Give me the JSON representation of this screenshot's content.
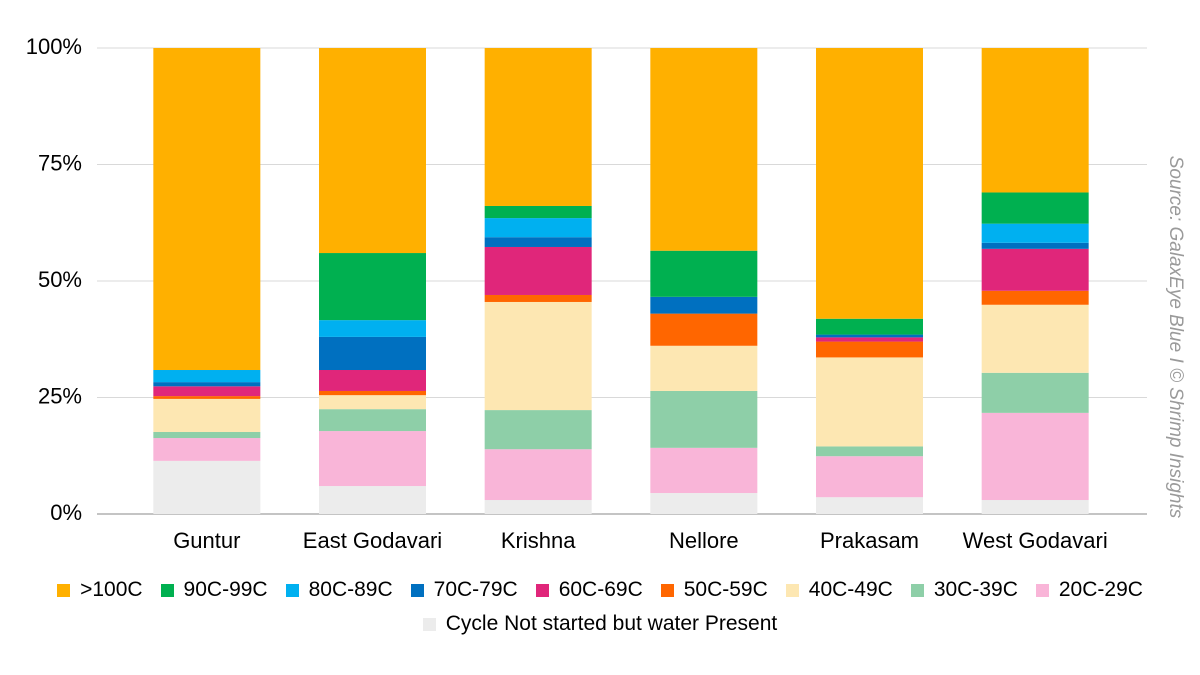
{
  "chart_data": {
    "type": "stacked_bar",
    "categories": [
      "Guntur",
      "East Godavari",
      "Krishna",
      "Nellore",
      "Prakasam",
      "West Godavari"
    ],
    "series": [
      {
        "name": ">100C",
        "color": "#ffb000",
        "values": [
          69.1,
          44.0,
          33.9,
          43.5,
          58.1,
          31.0
        ]
      },
      {
        "name": "90C-99C",
        "color": "#00b050",
        "values": [
          0,
          14.4,
          2.6,
          9.9,
          3.4,
          6.7
        ]
      },
      {
        "name": "80C-89C",
        "color": "#00b0f0",
        "values": [
          2.6,
          3.6,
          4.1,
          0,
          0,
          4.1
        ]
      },
      {
        "name": "70C-79C",
        "color": "#0070c0",
        "values": [
          0.9,
          7.1,
          2.1,
          3.6,
          0.6,
          1.3
        ]
      },
      {
        "name": "60C-69C",
        "color": "#e0267a",
        "values": [
          2.1,
          4.5,
          10.3,
          0,
          0.9,
          9.0
        ]
      },
      {
        "name": "50C-59C",
        "color": "#ff6600",
        "values": [
          0.6,
          0.9,
          1.5,
          6.9,
          3.4,
          3.0
        ]
      },
      {
        "name": "40C-49C",
        "color": "#fde7b2",
        "values": [
          7.1,
          3.0,
          23.2,
          9.7,
          19.1,
          14.6
        ]
      },
      {
        "name": "30C-39C",
        "color": "#8ecfa8",
        "values": [
          1.3,
          4.7,
          8.4,
          12.2,
          2.1,
          8.6
        ]
      },
      {
        "name": "20C-29C",
        "color": "#f9b5d8",
        "values": [
          4.9,
          11.8,
          10.9,
          9.7,
          8.8,
          18.7
        ]
      },
      {
        "name": "Cycle Not started but water Present",
        "color": "#ececec",
        "values": [
          11.4,
          6.0,
          3.0,
          4.5,
          3.6,
          3.0
        ]
      }
    ],
    "ylim": [
      0,
      100
    ],
    "yticks": [
      {
        "value": 0,
        "label": "0%"
      },
      {
        "value": 25,
        "label": "25%"
      },
      {
        "value": 50,
        "label": "50%"
      },
      {
        "value": 75,
        "label": "75%"
      },
      {
        "value": 100,
        "label": "100%"
      }
    ],
    "grid": true,
    "source": "Source: GalaxEye Blue I © Shrimp Insights"
  }
}
